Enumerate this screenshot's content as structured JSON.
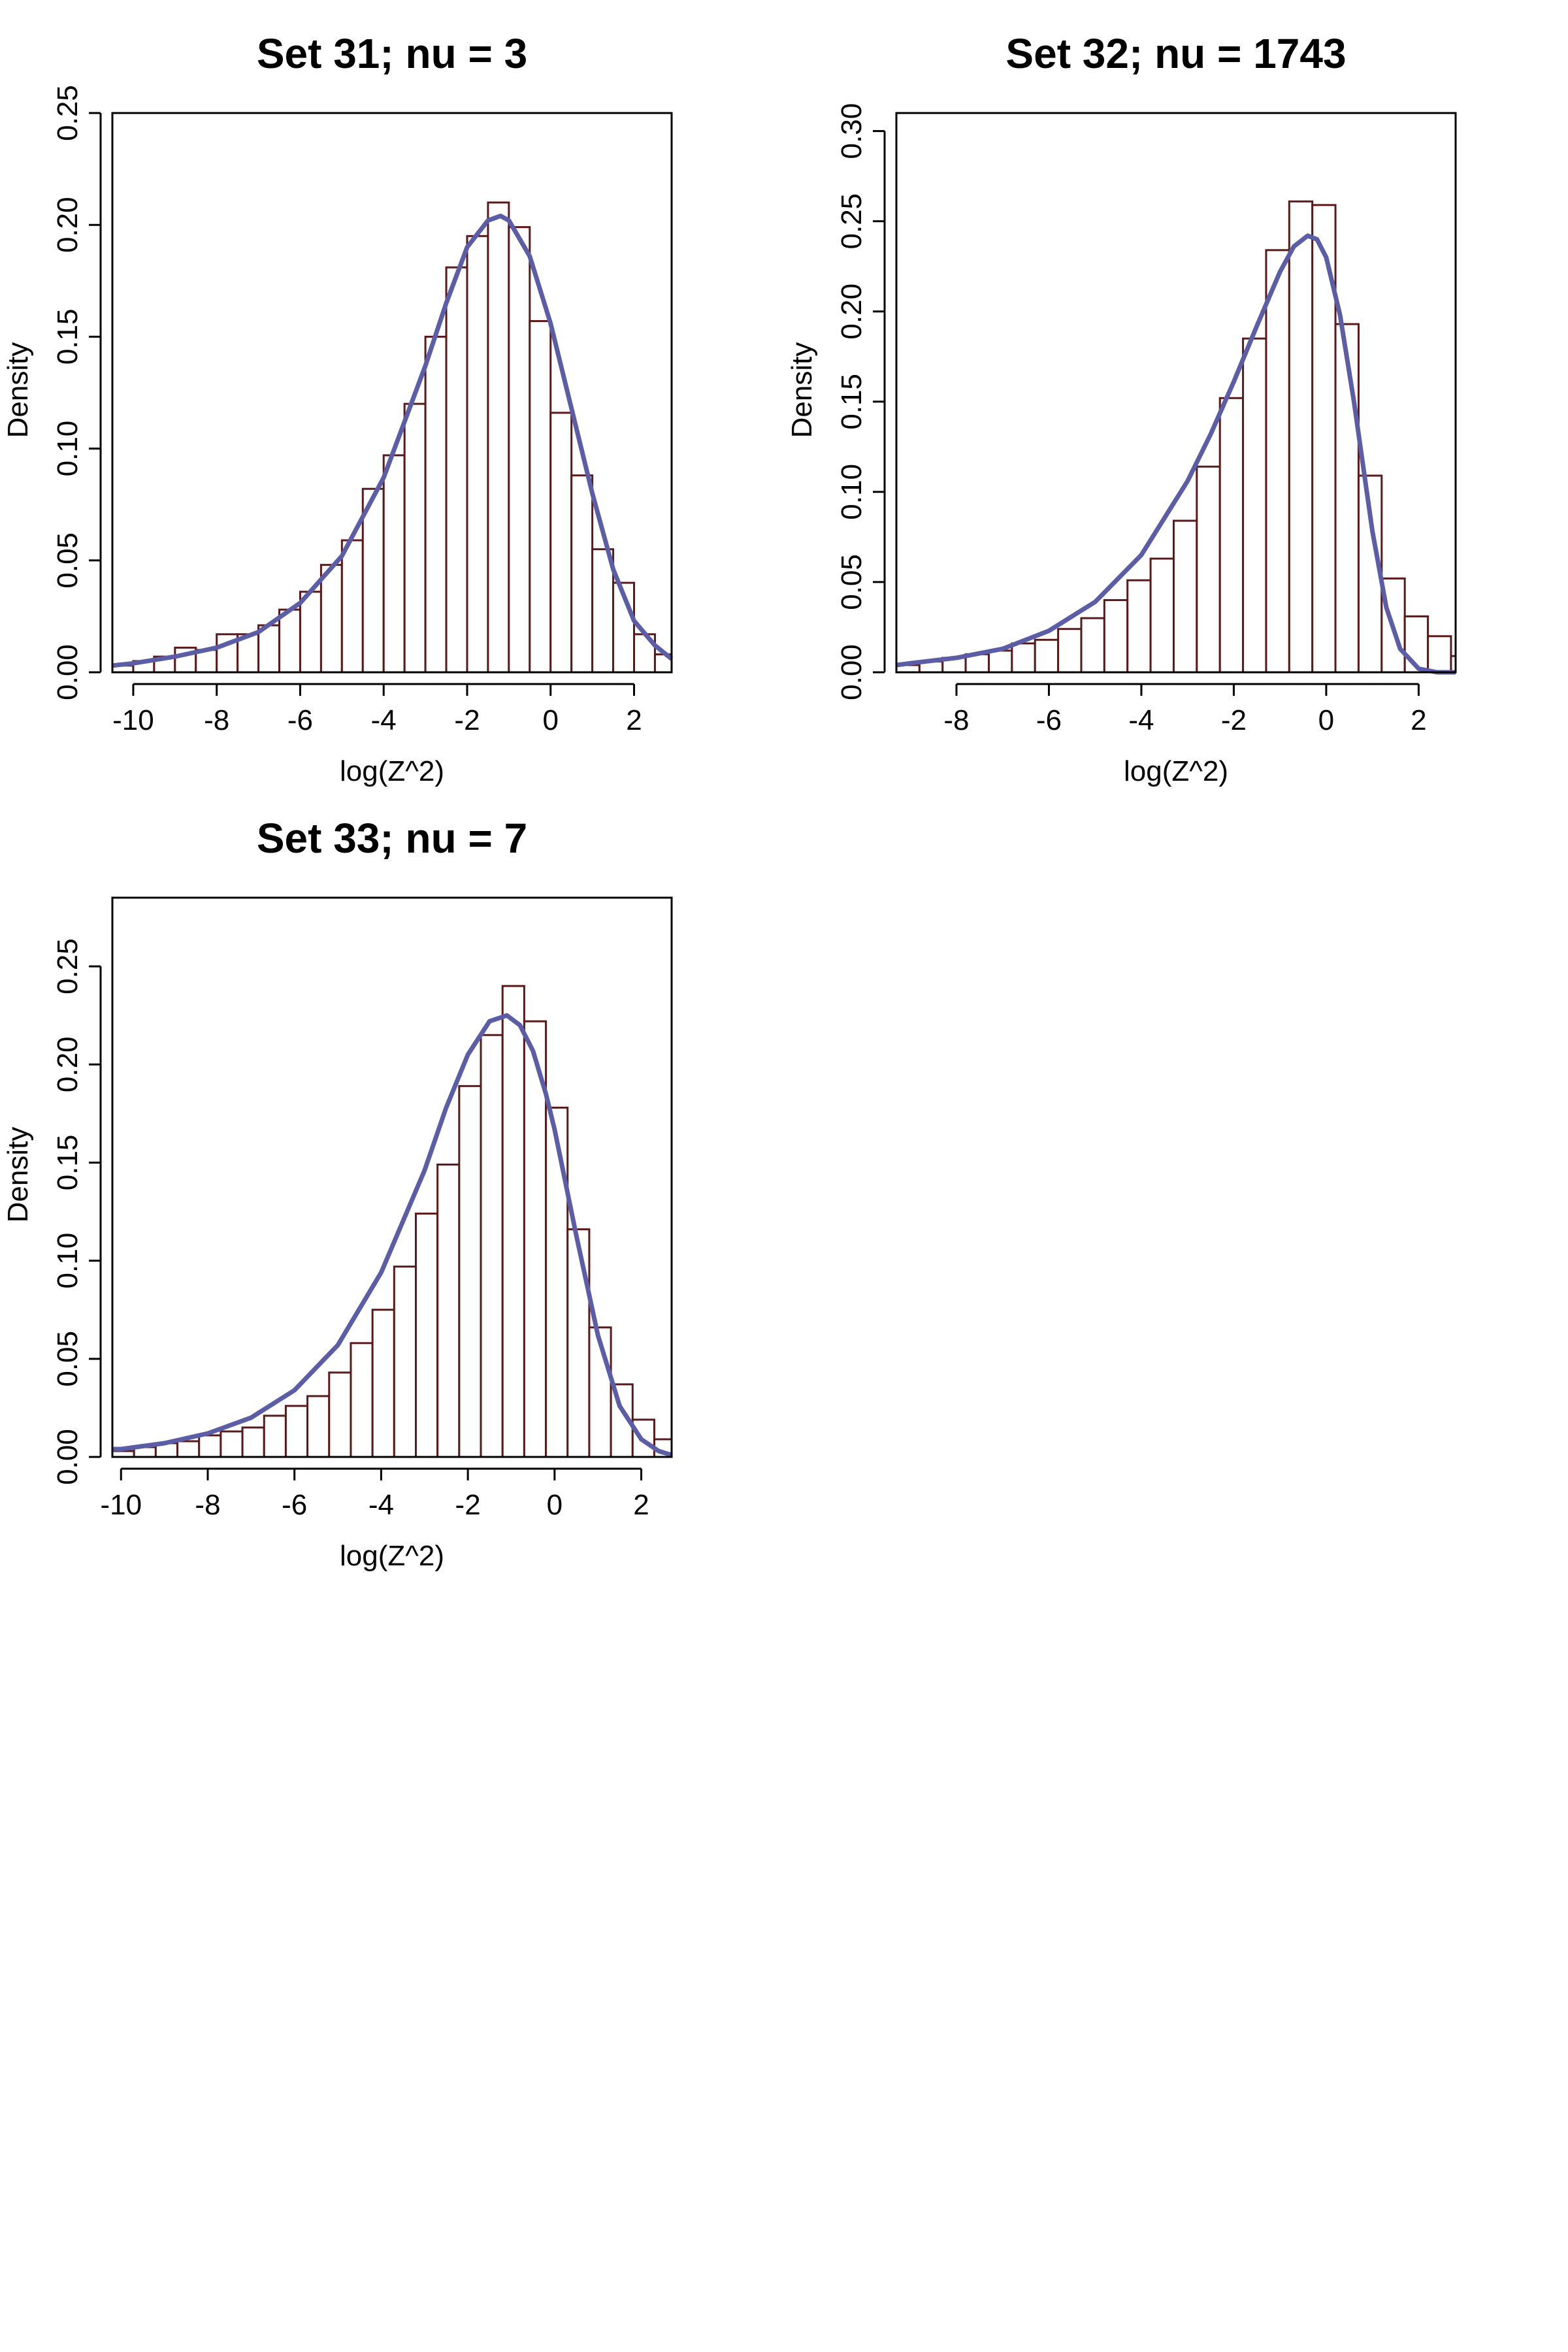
{
  "colors": {
    "bar_edge": "#5a1a1a",
    "bar_fill": "#ffffff",
    "curve": "#5b5ea6",
    "axis": "#000000"
  },
  "chart_data": [
    {
      "type": "bar",
      "title": "Set 31; nu = 3",
      "xlabel": "log(Z^2)",
      "ylabel": "Density",
      "xlim": [
        -10.5,
        2.9
      ],
      "ylim": [
        0,
        0.25
      ],
      "xticks": [
        -10,
        -8,
        -6,
        -4,
        -2,
        0,
        2
      ],
      "xtick_labels": [
        "-10",
        "-8",
        "-6",
        "-4",
        "-2",
        "0",
        "2"
      ],
      "yticks": [
        0,
        0.05,
        0.1,
        0.15,
        0.2,
        0.25
      ],
      "ytick_labels": [
        "0.00",
        "0.05",
        "0.10",
        "0.15",
        "0.20",
        "0.25"
      ],
      "bins": {
        "start": -10.5,
        "width": 0.5
      },
      "values": [
        0.003,
        0.005,
        0.007,
        0.011,
        0.01,
        0.017,
        0.017,
        0.021,
        0.028,
        0.036,
        0.048,
        0.059,
        0.082,
        0.097,
        0.12,
        0.15,
        0.181,
        0.195,
        0.21,
        0.199,
        0.157,
        0.116,
        0.088,
        0.055,
        0.04,
        0.017,
        0.008
      ],
      "curve": {
        "name": "density",
        "x": [
          -10.5,
          -10,
          -9,
          -8,
          -7,
          -6,
          -5,
          -4,
          -3,
          -2.5,
          -2,
          -1.5,
          -1.2,
          -1,
          -0.5,
          0,
          0.5,
          1,
          1.5,
          2,
          2.5,
          2.9
        ],
        "y": [
          0.003,
          0.004,
          0.007,
          0.011,
          0.018,
          0.031,
          0.052,
          0.087,
          0.137,
          0.165,
          0.19,
          0.202,
          0.204,
          0.202,
          0.186,
          0.156,
          0.118,
          0.08,
          0.046,
          0.023,
          0.012,
          0.006
        ]
      }
    },
    {
      "type": "bar",
      "title": "Set 32; nu = 1743",
      "xlabel": "log(Z^2)",
      "ylabel": "Density",
      "xlim": [
        -9.3,
        2.8
      ],
      "ylim": [
        0,
        0.31
      ],
      "xticks": [
        -8,
        -6,
        -4,
        -2,
        0,
        2
      ],
      "xtick_labels": [
        "-8",
        "-6",
        "-4",
        "-2",
        "0",
        "2"
      ],
      "yticks": [
        0,
        0.05,
        0.1,
        0.15,
        0.2,
        0.25,
        0.3
      ],
      "ytick_labels": [
        "0.00",
        "0.05",
        "0.10",
        "0.15",
        "0.20",
        "0.25",
        "0.30"
      ],
      "bins": {
        "start": -9.3,
        "width": 0.5
      },
      "values": [
        0.004,
        0.006,
        0.008,
        0.01,
        0.012,
        0.016,
        0.018,
        0.024,
        0.03,
        0.04,
        0.051,
        0.063,
        0.084,
        0.114,
        0.152,
        0.185,
        0.234,
        0.261,
        0.259,
        0.193,
        0.109,
        0.052,
        0.031,
        0.02,
        0.009
      ],
      "curve": {
        "name": "density",
        "x": [
          -9.3,
          -9,
          -8,
          -7,
          -6,
          -5,
          -4,
          -3,
          -2.5,
          -2,
          -1.5,
          -1,
          -0.7,
          -0.4,
          -0.2,
          0,
          0.3,
          0.6,
          1,
          1.3,
          1.6,
          2,
          2.4,
          2.8
        ],
        "y": [
          0.004,
          0.005,
          0.008,
          0.013,
          0.023,
          0.039,
          0.065,
          0.106,
          0.132,
          0.161,
          0.192,
          0.222,
          0.236,
          0.242,
          0.24,
          0.23,
          0.198,
          0.15,
          0.078,
          0.036,
          0.013,
          0.002,
          0.0,
          0.0
        ]
      }
    },
    {
      "type": "bar",
      "title": "Set 33; nu = 7",
      "xlabel": "log(Z^2)",
      "ylabel": "Density",
      "xlim": [
        -10.2,
        2.7
      ],
      "ylim": [
        0,
        0.285
      ],
      "xticks": [
        -10,
        -8,
        -6,
        -4,
        -2,
        0,
        2
      ],
      "xtick_labels": [
        "-10",
        "-8",
        "-6",
        "-4",
        "-2",
        "0",
        "2"
      ],
      "yticks": [
        0,
        0.05,
        0.1,
        0.15,
        0.2,
        0.25
      ],
      "ytick_labels": [
        "0.00",
        "0.05",
        "0.10",
        "0.15",
        "0.20",
        "0.25"
      ],
      "bins": {
        "start": -10.2,
        "width": 0.5
      },
      "values": [
        0.003,
        0.005,
        0.007,
        0.008,
        0.011,
        0.013,
        0.015,
        0.021,
        0.026,
        0.031,
        0.043,
        0.058,
        0.075,
        0.097,
        0.124,
        0.149,
        0.189,
        0.215,
        0.24,
        0.222,
        0.178,
        0.116,
        0.066,
        0.037,
        0.019,
        0.009,
        0.006
      ],
      "curve": {
        "name": "density",
        "x": [
          -10.2,
          -10,
          -9,
          -8,
          -7,
          -6,
          -5,
          -4,
          -3,
          -2.5,
          -2,
          -1.5,
          -1.1,
          -0.8,
          -0.5,
          -0.2,
          0,
          0.5,
          1,
          1.5,
          2,
          2.4,
          2.7
        ],
        "y": [
          0.004,
          0.004,
          0.007,
          0.012,
          0.02,
          0.034,
          0.057,
          0.094,
          0.146,
          0.178,
          0.205,
          0.222,
          0.225,
          0.22,
          0.207,
          0.185,
          0.167,
          0.113,
          0.062,
          0.026,
          0.009,
          0.003,
          0.001
        ]
      }
    }
  ]
}
